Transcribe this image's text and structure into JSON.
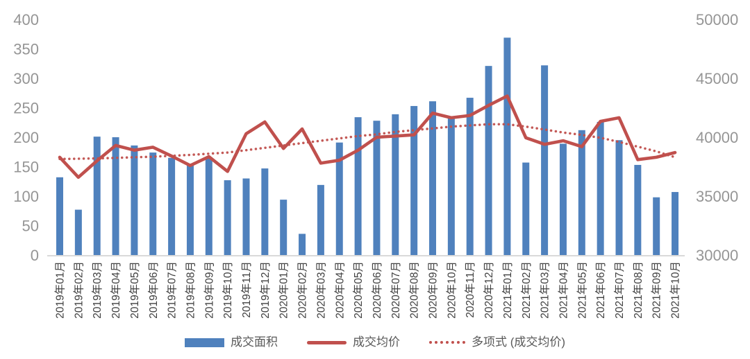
{
  "chart_data": {
    "type": "bar",
    "subtype": "bar+line combo, dual axis",
    "title": "",
    "categories": [
      "2019年01月",
      "2019年02月",
      "2019年03月",
      "2019年04月",
      "2019年05月",
      "2019年06月",
      "2019年07月",
      "2019年08月",
      "2019年09月",
      "2019年10月",
      "2019年11月",
      "2019年12月",
      "2020年01月",
      "2020年02月",
      "2020年03月",
      "2020年04月",
      "2020年05月",
      "2020年06月",
      "2020年07月",
      "2020年08月",
      "2020年09月",
      "2020年10月",
      "2020年11月",
      "2020年12月",
      "2021年01月",
      "2021年02月",
      "2021年03月",
      "2021年04月",
      "2021年05月",
      "2021年06月",
      "2021年07月",
      "2021年08月",
      "2021年09月",
      "2021年10月"
    ],
    "series": [
      {
        "name": "成交面积",
        "type": "bar",
        "axis": "left",
        "color": "#4F81BD",
        "values": [
          132,
          77,
          201,
          200,
          186,
          174,
          165,
          155,
          166,
          127,
          130,
          147,
          94,
          36,
          119,
          191,
          234,
          228,
          239,
          253,
          261,
          235,
          267,
          321,
          369,
          157,
          322,
          189,
          212,
          226,
          195,
          153,
          98,
          107
        ]
      },
      {
        "name": "成交均价",
        "type": "line",
        "axis": "right",
        "color": "#C0504D",
        "values": [
          38300,
          36600,
          38000,
          39300,
          38900,
          39150,
          38400,
          37600,
          38350,
          37100,
          40300,
          41300,
          39050,
          40700,
          37800,
          38050,
          38900,
          40000,
          40100,
          40200,
          42050,
          41650,
          41850,
          42700,
          43500,
          39950,
          39400,
          39700,
          39200,
          41350,
          41650,
          38100,
          38300,
          38700
        ]
      },
      {
        "name": "多项式 (成交均价)",
        "type": "line",
        "dash": "dotted",
        "axis": "right",
        "color": "#C0504D",
        "values": [
          38150,
          38175,
          38200,
          38250,
          38300,
          38350,
          38425,
          38500,
          38600,
          38700,
          38900,
          39100,
          39300,
          39500,
          39700,
          39900,
          40100,
          40250,
          40450,
          40600,
          40750,
          40900,
          41000,
          41100,
          41100,
          40900,
          40650,
          40400,
          40200,
          39950,
          39600,
          39200,
          38800,
          38300
        ]
      }
    ],
    "left_axis": {
      "min": 0,
      "max": 400,
      "step": 50,
      "labels": [
        "0",
        "50",
        "100",
        "150",
        "200",
        "250",
        "300",
        "350",
        "400"
      ]
    },
    "right_axis": {
      "min": 30000,
      "max": 50000,
      "step": 5000,
      "labels": [
        "30000",
        "35000",
        "40000",
        "45000",
        "50000"
      ]
    },
    "grid": false,
    "legend_position": "bottom"
  },
  "legend": {
    "items": [
      {
        "label": "成交面积",
        "swatch": "bar",
        "color": "#4F81BD"
      },
      {
        "label": "成交均价",
        "swatch": "line",
        "color": "#C0504D"
      },
      {
        "label": "多项式 (成交均价)",
        "swatch": "dotted-line",
        "color": "#C0504D"
      }
    ]
  },
  "colors": {
    "bar": "#4F81BD",
    "line": "#C0504D",
    "trendline": "#C0504D",
    "axis_tick_label": "#959595",
    "category_label": "#404040",
    "baseline": "#D9D9D9",
    "background": "#FFFFFF"
  }
}
